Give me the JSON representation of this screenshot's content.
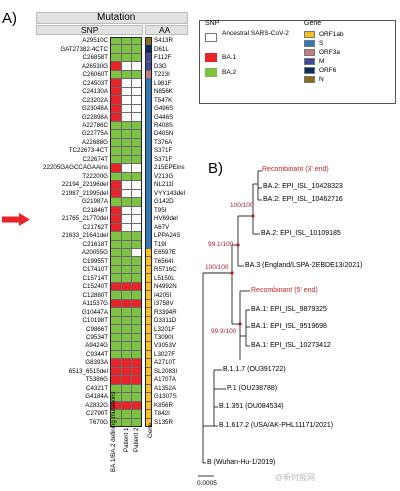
{
  "panel_a": {
    "label": "A)",
    "header_mutation": "Mutation",
    "header_snp": "SNP",
    "header_aa": "AA",
    "column_labels": [
      "BA.1/BA.2 defining mutations",
      "Patient 1",
      "Patient 2",
      "Gene"
    ],
    "rows": [
      {
        "snp": "A29510C",
        "aa": "S413R",
        "c": [
          "G",
          "G",
          "G"
        ],
        "gene": "N"
      },
      {
        "snp": "GAT27382-4CTC",
        "aa": "D61L",
        "c": [
          "G",
          "G",
          "G"
        ],
        "gene": "ORF6"
      },
      {
        "snp": "C26858T",
        "aa": "F112F",
        "c": [
          "G",
          "G",
          "G"
        ],
        "gene": "M"
      },
      {
        "snp": "A26530G",
        "aa": "D3G",
        "c": [
          "R",
          "W",
          "W"
        ],
        "gene": "M"
      },
      {
        "snp": "C26060T",
        "aa": "T223I",
        "c": [
          "G",
          "G",
          "G"
        ],
        "gene": "ORF3a"
      },
      {
        "snp": "C24503T",
        "aa": "L981F",
        "c": [
          "R",
          "W",
          "W"
        ],
        "gene": "S"
      },
      {
        "snp": "C24130A",
        "aa": "N856K",
        "c": [
          "R",
          "W",
          "W"
        ],
        "gene": "S"
      },
      {
        "snp": "C23202A",
        "aa": "T547K",
        "c": [
          "R",
          "W",
          "W"
        ],
        "gene": "S"
      },
      {
        "snp": "G23048A",
        "aa": "G496S",
        "c": [
          "R",
          "W",
          "W"
        ],
        "gene": "S"
      },
      {
        "snp": "G22898A",
        "aa": "G446S",
        "c": [
          "R",
          "W",
          "W"
        ],
        "gene": "S"
      },
      {
        "snp": "A22786C",
        "aa": "R408S",
        "c": [
          "G",
          "G",
          "G"
        ],
        "gene": "S"
      },
      {
        "snp": "G22775A",
        "aa": "D405N",
        "c": [
          "G",
          "G",
          "G"
        ],
        "gene": "S"
      },
      {
        "snp": "A22688G",
        "aa": "T376A",
        "c": [
          "G",
          "G",
          "G"
        ],
        "gene": "S"
      },
      {
        "snp": "TC22673-4CT",
        "aa": "S371F",
        "c": [
          "G",
          "G",
          "G"
        ],
        "gene": "S"
      },
      {
        "snp": "C22674T",
        "aa": "S371F",
        "c": [
          "G",
          "G",
          "G"
        ],
        "gene": "S"
      },
      {
        "snp": "22205GAGCCAGAAins",
        "aa": "215EPEins",
        "c": [
          "R",
          "W",
          "W"
        ],
        "gene": "S"
      },
      {
        "snp": "T22200G",
        "aa": "V213G",
        "c": [
          "G",
          "G",
          "G"
        ],
        "gene": "S"
      },
      {
        "snp": "22194_22196del",
        "aa": "NL211I",
        "c": [
          "R",
          "W",
          "W"
        ],
        "gene": "S"
      },
      {
        "snp": "21987_21995del",
        "aa": "VYY143del",
        "c": [
          "R",
          "W",
          "W"
        ],
        "gene": "S"
      },
      {
        "snp": "G21987A",
        "aa": "G142D",
        "c": [
          "G",
          "G",
          "G"
        ],
        "gene": "S"
      },
      {
        "snp": "C21846T",
        "aa": "T95I",
        "c": [
          "R",
          "W",
          "W"
        ],
        "gene": "S"
      },
      {
        "snp": "21765_21770del",
        "aa": "HV69del",
        "c": [
          "R",
          "W",
          "W"
        ],
        "gene": "S"
      },
      {
        "snp": "C21762T",
        "aa": "A67V",
        "c": [
          "R",
          "W",
          "W"
        ],
        "gene": "S"
      },
      {
        "snp": "21633_21641del",
        "aa": "LPPA24S",
        "c": [
          "G",
          "G",
          "G"
        ],
        "gene": "S"
      },
      {
        "snp": "C21618T",
        "aa": "T19I",
        "c": [
          "G",
          "G",
          "G"
        ],
        "gene": "S"
      },
      {
        "snp": "A20055G",
        "aa": "E6597E",
        "c": [
          "G",
          "G",
          "W"
        ],
        "gene": "ORF1ab"
      },
      {
        "snp": "C19955T",
        "aa": "T6564I",
        "c": [
          "G",
          "G",
          "G"
        ],
        "gene": "ORF1ab"
      },
      {
        "snp": "C17410T",
        "aa": "R5716C",
        "c": [
          "G",
          "G",
          "G"
        ],
        "gene": "ORF1ab"
      },
      {
        "snp": "C15714T",
        "aa": "L5150L",
        "c": [
          "G",
          "G",
          "G"
        ],
        "gene": "ORF1ab"
      },
      {
        "snp": "C15240T",
        "aa": "N4992N",
        "c": [
          "R",
          "R",
          "R"
        ],
        "gene": "ORF1ab"
      },
      {
        "snp": "C12880T",
        "aa": "I4205I",
        "c": [
          "G",
          "G",
          "G"
        ],
        "gene": "ORF1ab"
      },
      {
        "snp": "A11537G",
        "aa": "I3758V",
        "c": [
          "R",
          "R",
          "R"
        ],
        "gene": "ORF1ab"
      },
      {
        "snp": "G10447A",
        "aa": "R3394R",
        "c": [
          "G",
          "G",
          "G"
        ],
        "gene": "ORF1ab"
      },
      {
        "snp": "C10198T",
        "aa": "D3311D",
        "c": [
          "G",
          "G",
          "G"
        ],
        "gene": "ORF1ab"
      },
      {
        "snp": "C9866T",
        "aa": "L3201F",
        "c": [
          "G",
          "G",
          "G"
        ],
        "gene": "ORF1ab"
      },
      {
        "snp": "C9534T",
        "aa": "T3090I",
        "c": [
          "G",
          "G",
          "G"
        ],
        "gene": "ORF1ab"
      },
      {
        "snp": "A9424G",
        "aa": "V3053V",
        "c": [
          "G",
          "G",
          "G"
        ],
        "gene": "ORF1ab"
      },
      {
        "snp": "C9344T",
        "aa": "L3027F",
        "c": [
          "G",
          "G",
          "G"
        ],
        "gene": "ORF1ab"
      },
      {
        "snp": "G8393A",
        "aa": "A2710T",
        "c": [
          "R",
          "R",
          "R"
        ],
        "gene": "ORF1ab"
      },
      {
        "snp": "6513_6515del",
        "aa": "SL2083I",
        "c": [
          "R",
          "R",
          "R"
        ],
        "gene": "ORF1ab"
      },
      {
        "snp": "T5386G",
        "aa": "A1707A",
        "c": [
          "R",
          "R",
          "R"
        ],
        "gene": "ORF1ab"
      },
      {
        "snp": "C4321T",
        "aa": "A1352A",
        "c": [
          "G",
          "G",
          "G"
        ],
        "gene": "ORF1ab"
      },
      {
        "snp": "G4184A",
        "aa": "G1307S",
        "c": [
          "G",
          "G",
          "G"
        ],
        "gene": "ORF1ab"
      },
      {
        "snp": "A2832G",
        "aa": "K856R",
        "c": [
          "R",
          "R",
          "R"
        ],
        "gene": "ORF1ab"
      },
      {
        "snp": "C2790T",
        "aa": "T842I",
        "c": [
          "G",
          "G",
          "G"
        ],
        "gene": "ORF1ab"
      },
      {
        "snp": "T670G",
        "aa": "S135R",
        "c": [
          "G",
          "G",
          "G"
        ],
        "gene": "ORF1ab"
      }
    ],
    "highlight_row_snp": "A20055G"
  },
  "legend": {
    "snp_title": "SNP",
    "gene_title": "Gene",
    "snp_items": [
      {
        "label": "Ancestral SARS-CoV-2",
        "color": "#ffffff"
      },
      {
        "label": "BA.1",
        "color": "#e8232a"
      },
      {
        "label": "BA.2",
        "color": "#7dc242"
      }
    ],
    "gene_items": [
      {
        "label": "ORF1ab",
        "color": "#f7c126"
      },
      {
        "label": "S",
        "color": "#2f78be"
      },
      {
        "label": "ORF3a",
        "color": "#c07f86"
      },
      {
        "label": "M",
        "color": "#3f4a97"
      },
      {
        "label": "ORF6",
        "color": "#0b2d5a"
      },
      {
        "label": "N",
        "color": "#8a6b1c"
      }
    ]
  },
  "colors": {
    "R": "#e8232a",
    "G": "#7dc242",
    "W": "#ffffff",
    "arrow": "#e8232a",
    "boot": "#a3242b",
    "recomb": "#c0282e"
  },
  "panel_b": {
    "label": "B)",
    "taxa": [
      {
        "name": "Recombinant (3' end)",
        "recomb": true
      },
      {
        "name": "BA.2: EPI_ISL_10428323",
        "recomb": false
      },
      {
        "name": "BA.2: EPI_ISL_10462716",
        "recomb": false
      },
      {
        "name": "BA.2: EPI_ISL_10109185",
        "recomb": false
      },
      {
        "name": "BA.3 (England/LSPA-2EBDE13/2021)",
        "recomb": false
      },
      {
        "name": "Recombinant (5' end)",
        "recomb": true
      },
      {
        "name": "BA.1: EPI_ISL_9879325",
        "recomb": false
      },
      {
        "name": "BA.1: EPI_ISL_9519698",
        "recomb": false
      },
      {
        "name": "BA.1: EPI_ISL_10273412",
        "recomb": false
      },
      {
        "name": "B.1.1.7 (OU391722)",
        "recomb": false
      },
      {
        "name": "P.1 (OU238788)",
        "recomb": false
      },
      {
        "name": "B.1.351 (OU084534)",
        "recomb": false
      },
      {
        "name": "B.1.617.2 (USA/AK-PHL11171/2021)",
        "recomb": false
      },
      {
        "name": "B (Wuhan-Hu-1/2019)",
        "recomb": false
      }
    ],
    "bootstraps": [
      "100/100",
      "99.1/100",
      "100/100",
      "99.9/100"
    ],
    "scale_label": "0.0005"
  },
  "watermark": "@新时报网"
}
